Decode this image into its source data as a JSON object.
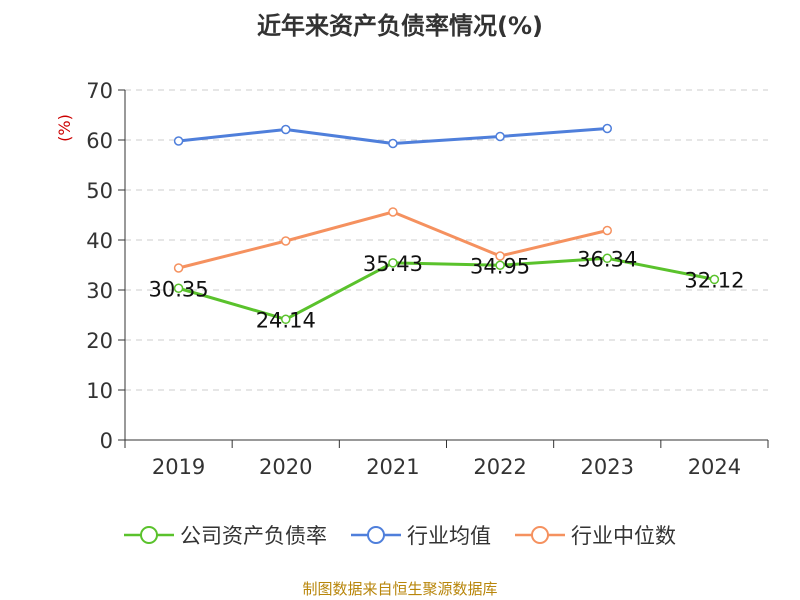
{
  "chart_data": {
    "type": "line",
    "title": "近年来资产负债率情况(%)",
    "ylabel": "(%)",
    "xlabel": "",
    "ylim": [
      0,
      70
    ],
    "yticks": [
      0,
      10,
      20,
      30,
      40,
      50,
      60,
      70
    ],
    "categories": [
      "2019",
      "2020",
      "2021",
      "2022",
      "2023",
      "2024"
    ],
    "grid": true,
    "legend_position": "bottom",
    "series": [
      {
        "name": "公司资产负债率",
        "color": "#5ac22c",
        "values": [
          30.35,
          24.14,
          35.43,
          34.95,
          36.34,
          32.12
        ],
        "labels": [
          "30.35",
          "24.14",
          "35.43",
          "34.95",
          "36.34",
          "32.12"
        ]
      },
      {
        "name": "行业均值",
        "color": "#4f7fdb",
        "values": [
          59.8,
          62.1,
          59.3,
          60.7,
          62.3,
          null
        ]
      },
      {
        "name": "行业中位数",
        "color": "#f5915f",
        "values": [
          34.4,
          39.8,
          45.6,
          36.8,
          41.9,
          null
        ]
      }
    ]
  },
  "source": "制图数据来自恒生聚源数据库"
}
